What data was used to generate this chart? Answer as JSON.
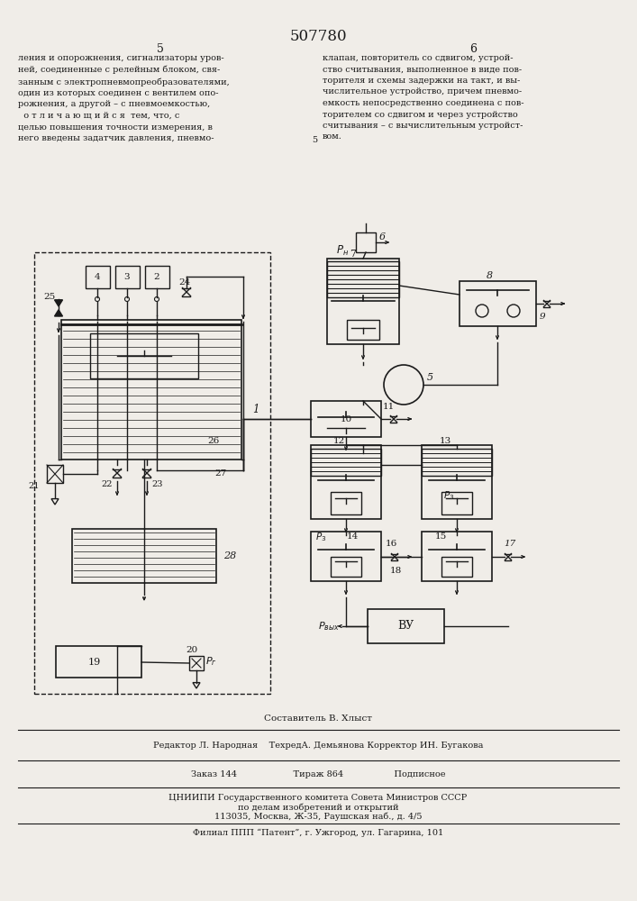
{
  "patent_number": "507780",
  "page_left": "5",
  "page_right": "6",
  "text_left": "ления и опорожнения, сигнализаторы уров-\nней, соединенные с релейным блоком, свя-\nзанным с электропневмопреобразователями,\nодин из которых соединен с вентилем опо-\nрожнения, а другой – с пневмоемкостью,\n  о т л и ч а ю щ и й с я  тем, что, с\nцелью повышения точности измерения, в\nнего введены задатчик давления, пневмо-",
  "text_right": "клапан, повторитель со сдвигом, устрой-\nство считывания, выполненное в виде пов-\nторителя и схемы задержки на такт, и вы-\nчислительное устройство, причем пневмо-\nемкость непосредственно соединена с пов-\nторителем со сдвигом и через устройство\nсчитывания – с вычислительным устройст-\nвом.",
  "footer_line1": "Составитель В. Хлыст",
  "footer_line2": "Редактор Л. Народная    ТехредА. Демьянова Корректор ИН. Бугакова",
  "footer_line3": "Заказ 144                    Тираж 864                  Подписное",
  "footer_line4": "ЦНИИПИ Государственного комитета Совета Министров СССР",
  "footer_line5": "по делам изобретений и открытий",
  "footer_line6": "113035, Москва, Ж-35, Раушская наб., д. 4/5",
  "footer_line7": "Филиал ППП “Патент”, г. Ужгород, ул. Гагарина, 101",
  "bg_color": "#f0ede8",
  "text_color": "#1a1a1a",
  "diagram_color": "#1a1a1a"
}
